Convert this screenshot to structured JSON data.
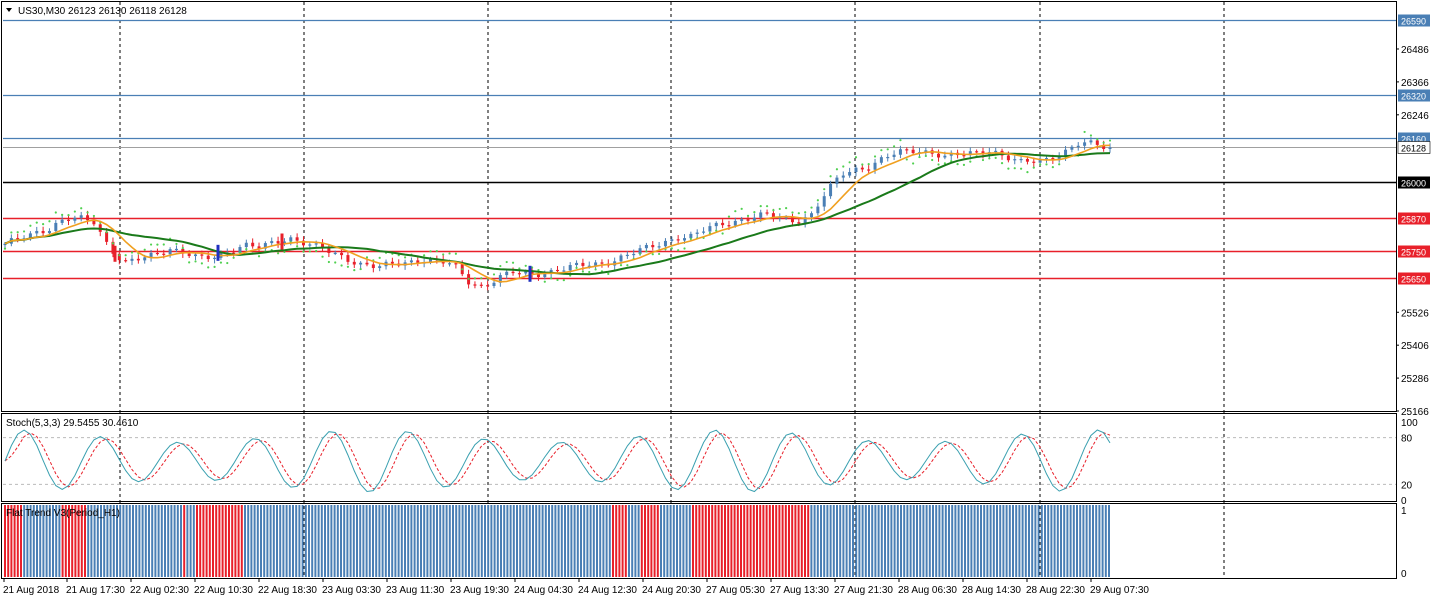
{
  "header": {
    "symbol_title": "US30,M30  26123 26130 26118 26128",
    "dropdown_icon": "triangle-down-icon"
  },
  "indicators": {
    "stochastic_label": "Stoch(5,3,3) 29.5455 30.4610",
    "flat_trend_label": "Flat Trend V3(Period_H1)"
  },
  "colors": {
    "bull_candle": "#4a7fb5",
    "bear_candle": "#e8202a",
    "ma_fast": "#f0a020",
    "ma_slow": "#1a7a1a",
    "psar": "#50d050",
    "level_blue": "#4a7fb5",
    "level_red": "#e8202a",
    "level_black": "#000000",
    "stoch_main": "#3aa0b0",
    "stoch_signal": "#e8202a",
    "flat_up": "#4a7fb5",
    "flat_down": "#e8202a"
  },
  "chart_data": {
    "type": "candlestick",
    "symbol": "US30",
    "timeframe": "M30",
    "ylim": [
      25166,
      26650
    ],
    "y_ticks": [
      "26590",
      "26486",
      "26366",
      "26320",
      "26246",
      "26160",
      "26128",
      "26000",
      "25870",
      "25750",
      "25650",
      "25526",
      "25406",
      "25286",
      "25166"
    ],
    "x_ticks": [
      "21 Aug 2018",
      "21 Aug 17:30",
      "22 Aug 02:30",
      "22 Aug 10:30",
      "22 Aug 18:30",
      "23 Aug 03:30",
      "23 Aug 11:30",
      "23 Aug 19:30",
      "24 Aug 04:30",
      "24 Aug 12:30",
      "24 Aug 20:30",
      "27 Aug 05:30",
      "27 Aug 13:30",
      "27 Aug 21:30",
      "28 Aug 06:30",
      "28 Aug 14:30",
      "28 Aug 22:30",
      "29 Aug 07:30"
    ],
    "horizontal_levels": [
      {
        "value": 26590,
        "color": "blue"
      },
      {
        "value": 26320,
        "color": "blue"
      },
      {
        "value": 26160,
        "color": "blue"
      },
      {
        "value": 26000,
        "color": "black"
      },
      {
        "value": 25870,
        "color": "red"
      },
      {
        "value": 25750,
        "color": "red"
      },
      {
        "value": 25650,
        "color": "red"
      }
    ],
    "current_price": 26128,
    "price_path": [
      [
        25770,
        25780
      ],
      [
        25800,
        25800
      ],
      [
        25820,
        25810
      ],
      [
        25830,
        25820
      ],
      [
        25860,
        25840
      ],
      [
        25870,
        25860
      ],
      [
        25860,
        25860
      ],
      [
        25760,
        25810
      ],
      [
        25700,
        25760
      ],
      [
        25720,
        25740
      ],
      [
        25740,
        25740
      ],
      [
        25760,
        25750
      ],
      [
        25740,
        25750
      ],
      [
        25720,
        25740
      ],
      [
        25730,
        25740
      ],
      [
        25750,
        25740
      ],
      [
        25770,
        25750
      ],
      [
        25760,
        25755
      ],
      [
        25780,
        25760
      ],
      [
        25800,
        25770
      ],
      [
        25780,
        25770
      ],
      [
        25760,
        25770
      ],
      [
        25740,
        25765
      ],
      [
        25720,
        25755
      ],
      [
        25700,
        25745
      ],
      [
        25690,
        25735
      ],
      [
        25700,
        25730
      ],
      [
        25710,
        25725
      ],
      [
        25720,
        25722
      ],
      [
        25710,
        25718
      ],
      [
        25700,
        25712
      ],
      [
        25640,
        25700
      ],
      [
        25620,
        25690
      ],
      [
        25650,
        25680
      ],
      [
        25670,
        25672
      ],
      [
        25665,
        25670
      ],
      [
        25670,
        25668
      ],
      [
        25680,
        25670
      ],
      [
        25690,
        25675
      ],
      [
        25700,
        25682
      ],
      [
        25705,
        25688
      ],
      [
        25720,
        25695
      ],
      [
        25740,
        25705
      ],
      [
        25760,
        25715
      ],
      [
        25780,
        25725
      ],
      [
        25800,
        25740
      ],
      [
        25800,
        25755
      ],
      [
        25830,
        25775
      ],
      [
        25850,
        25790
      ],
      [
        25860,
        25805
      ],
      [
        25870,
        25820
      ],
      [
        25880,
        25835
      ],
      [
        25870,
        25850
      ],
      [
        25860,
        25860
      ],
      [
        25880,
        25868
      ],
      [
        25960,
        25880
      ],
      [
        26030,
        25900
      ],
      [
        26050,
        25920
      ],
      [
        26060,
        25945
      ],
      [
        26090,
        25965
      ],
      [
        26110,
        25985
      ],
      [
        26120,
        26000
      ],
      [
        26110,
        26010
      ],
      [
        26090,
        26018
      ],
      [
        26100,
        26025
      ],
      [
        26110,
        26032
      ],
      [
        26120,
        26040
      ],
      [
        26090,
        26046
      ],
      [
        26070,
        26052
      ],
      [
        26080,
        26058
      ],
      [
        26090,
        26064
      ],
      [
        26110,
        26072
      ],
      [
        26140,
        26082
      ],
      [
        26140,
        26090
      ],
      [
        26128,
        26096
      ]
    ]
  }
}
